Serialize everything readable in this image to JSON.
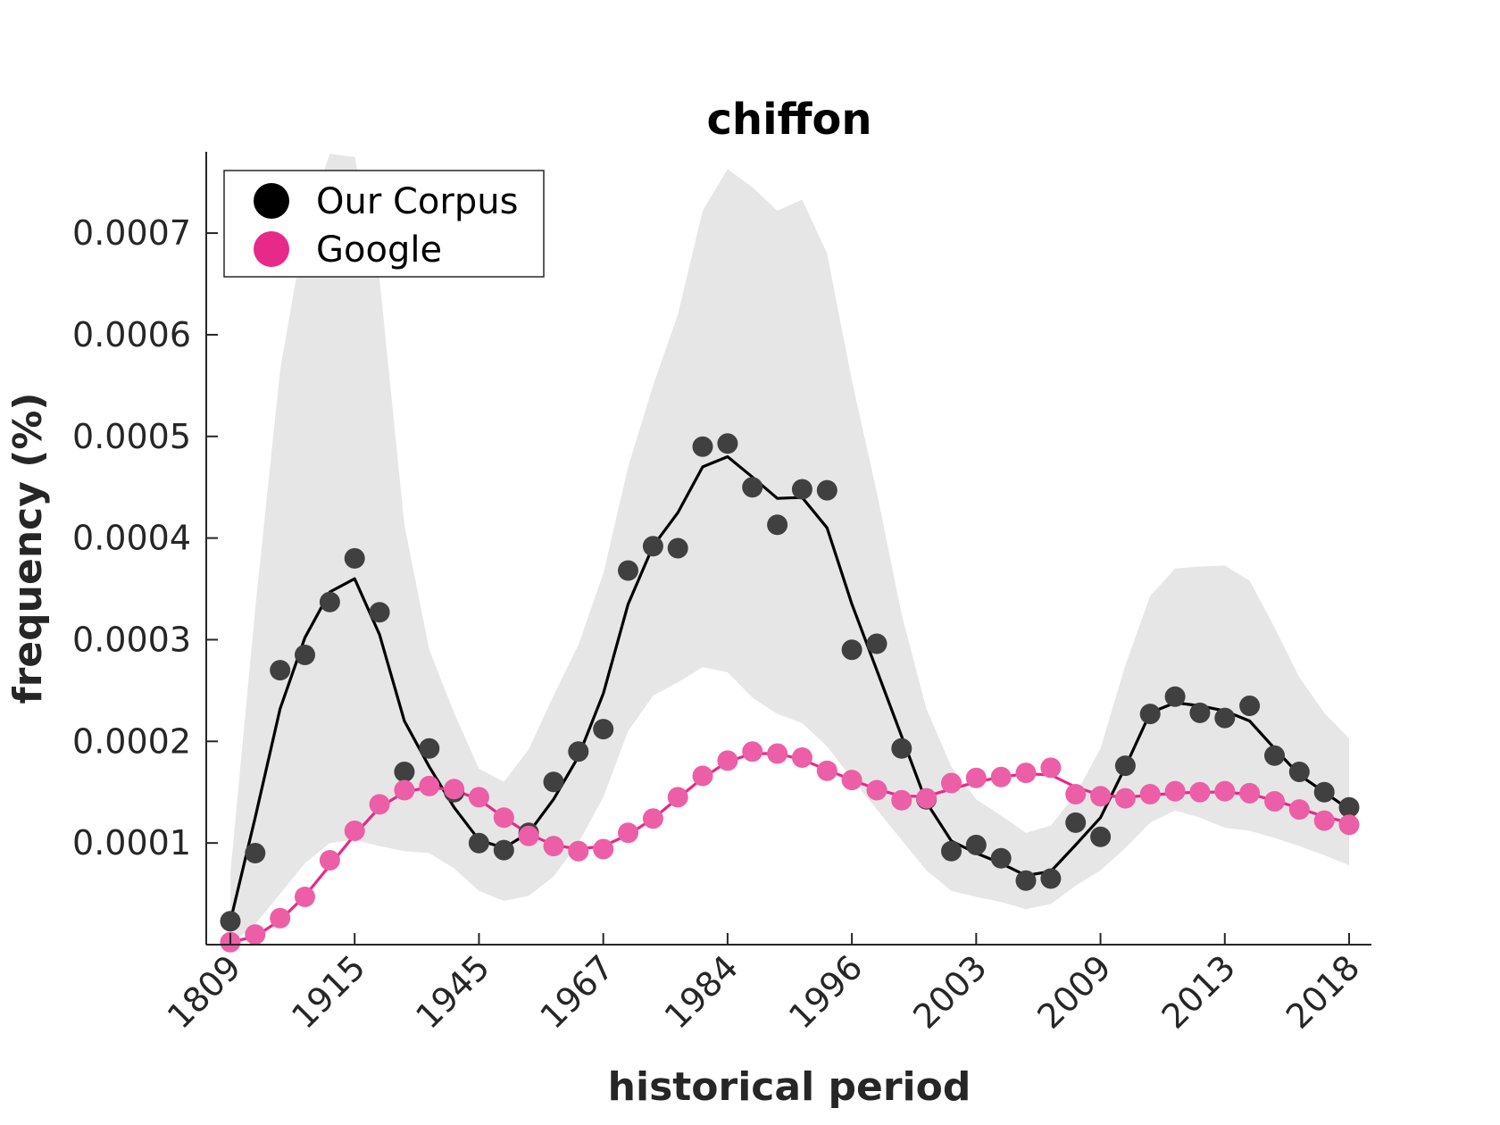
{
  "chart_data": {
    "type": "scatter",
    "title": "chiffon",
    "xlabel": "historical period",
    "ylabel": "frequency (%)",
    "x_tick_labels": [
      "1809",
      "1915",
      "1945",
      "1967",
      "1984",
      "1996",
      "2003",
      "2009",
      "2013",
      "2018"
    ],
    "y_ticks": [
      0.0001,
      0.0002,
      0.0003,
      0.0004,
      0.0005,
      0.0006,
      0.0007
    ],
    "y_tick_labels": [
      "0.0001",
      "0.0002",
      "0.0003",
      "0.0004",
      "0.0005",
      "0.0006",
      "0.0007"
    ],
    "ylim": [
      0.0,
      0.00078
    ],
    "x_index_range": [
      0,
      45
    ],
    "legend_position": "top-left",
    "grid": false,
    "series": [
      {
        "name": "Our Corpus",
        "color": "#000000",
        "marker_color": "#404040",
        "points": [
          2.3e-05,
          9e-05,
          0.00027,
          0.000285,
          0.000337,
          0.00038,
          0.000327,
          0.00017,
          0.000193,
          0.00015,
          0.0001,
          9.3e-05,
          0.00011,
          0.00016,
          0.00019,
          0.000212,
          0.000368,
          0.000392,
          0.00039,
          0.00049,
          0.000493,
          0.00045,
          0.000413,
          0.000448,
          0.000447,
          0.00029,
          0.000296,
          0.000193,
          0.000143,
          9.2e-05,
          9.8e-05,
          8.5e-05,
          6.3e-05,
          6.5e-05,
          0.00012,
          0.000106,
          0.000176,
          0.000227,
          0.000244,
          0.000228,
          0.000223,
          0.000235,
          0.000186,
          0.00017,
          0.00015,
          0.000135
        ],
        "smoothed": [
          2.3e-05,
          0.000125,
          0.000232,
          0.000302,
          0.000347,
          0.00036,
          0.000305,
          0.00022,
          0.000175,
          0.000135,
          0.000103,
          9.5e-05,
          0.00011,
          0.000143,
          0.000185,
          0.000247,
          0.000335,
          0.000392,
          0.000425,
          0.00047,
          0.00048,
          0.00046,
          0.000439,
          0.00044,
          0.00041,
          0.000335,
          0.00027,
          0.000205,
          0.00014,
          0.000102,
          9e-05,
          8e-05,
          6.8e-05,
          7.2e-05,
          9.8e-05,
          0.000125,
          0.000175,
          0.000228,
          0.000238,
          0.000235,
          0.00023,
          0.00022,
          0.000193,
          0.000167,
          0.00015,
          0.000133
        ],
        "band_upper": [
          7e-05,
          0.00033,
          0.000565,
          0.000705,
          0.000778,
          0.000775,
          0.000655,
          0.000413,
          0.00029,
          0.000228,
          0.000173,
          0.00016,
          0.000192,
          0.000245,
          0.000295,
          0.000365,
          0.00047,
          0.00055,
          0.00062,
          0.000722,
          0.000763,
          0.000745,
          0.000722,
          0.000733,
          0.00068,
          0.000555,
          0.000445,
          0.000325,
          0.000232,
          0.000175,
          0.000143,
          0.000127,
          0.00011,
          0.000117,
          0.000148,
          0.000193,
          0.000275,
          0.000343,
          0.00037,
          0.000372,
          0.000373,
          0.000358,
          0.000312,
          0.000263,
          0.000228,
          0.000203
        ],
        "band_lower": [
          0.0,
          2e-05,
          5e-05,
          8e-05,
          0.0001,
          0.000103,
          9.7e-05,
          9.2e-05,
          9e-05,
          7.5e-05,
          5.3e-05,
          4.3e-05,
          4.8e-05,
          6.7e-05,
          0.0001,
          0.000145,
          0.00021,
          0.000245,
          0.000258,
          0.000273,
          0.000268,
          0.000243,
          0.000227,
          0.000218,
          0.000195,
          0.000163,
          0.000133,
          0.000103,
          7.3e-05,
          5.3e-05,
          4.7e-05,
          4.2e-05,
          3.5e-05,
          4e-05,
          5.8e-05,
          7.3e-05,
          9.5e-05,
          0.00012,
          0.000132,
          0.000125,
          0.000115,
          0.000112,
          0.000105,
          9.7e-05,
          8.8e-05,
          7.8e-05
        ]
      },
      {
        "name": "Google",
        "color": "#e7298a",
        "marker_color": "#ec5fa6",
        "points": [
          2.5e-06,
          1e-05,
          2.6e-05,
          4.7e-05,
          8.3e-05,
          0.000112,
          0.000138,
          0.000152,
          0.000156,
          0.000153,
          0.000145,
          0.000125,
          0.000107,
          9.7e-05,
          9.2e-05,
          9.4e-05,
          0.00011,
          0.000124,
          0.000145,
          0.000166,
          0.000181,
          0.00019,
          0.000188,
          0.000184,
          0.000171,
          0.000162,
          0.000152,
          0.000142,
          0.000144,
          0.000159,
          0.000164,
          0.000165,
          0.000169,
          0.000174,
          0.000148,
          0.000146,
          0.000144,
          0.000148,
          0.000151,
          0.00015,
          0.000151,
          0.000149,
          0.000141,
          0.000133,
          0.000122,
          0.000118
        ],
        "smoothed": [
          2.5e-06,
          8e-06,
          2.4e-05,
          4.8e-05,
          7.8e-05,
          0.000108,
          0.000135,
          0.00015,
          0.000155,
          0.000152,
          0.000143,
          0.000125,
          0.000109,
          9.8e-05,
          9.4e-05,
          9.7e-05,
          0.000108,
          0.000124,
          0.000144,
          0.000164,
          0.00018,
          0.000188,
          0.000188,
          0.000182,
          0.000172,
          0.000162,
          0.000153,
          0.000146,
          0.000146,
          0.000153,
          0.00016,
          0.000165,
          0.000168,
          0.000167,
          0.000155,
          0.000147,
          0.000145,
          0.000147,
          0.000149,
          0.00015,
          0.00015,
          0.000148,
          0.000142,
          0.000134,
          0.000126,
          0.00012
        ]
      }
    ]
  }
}
